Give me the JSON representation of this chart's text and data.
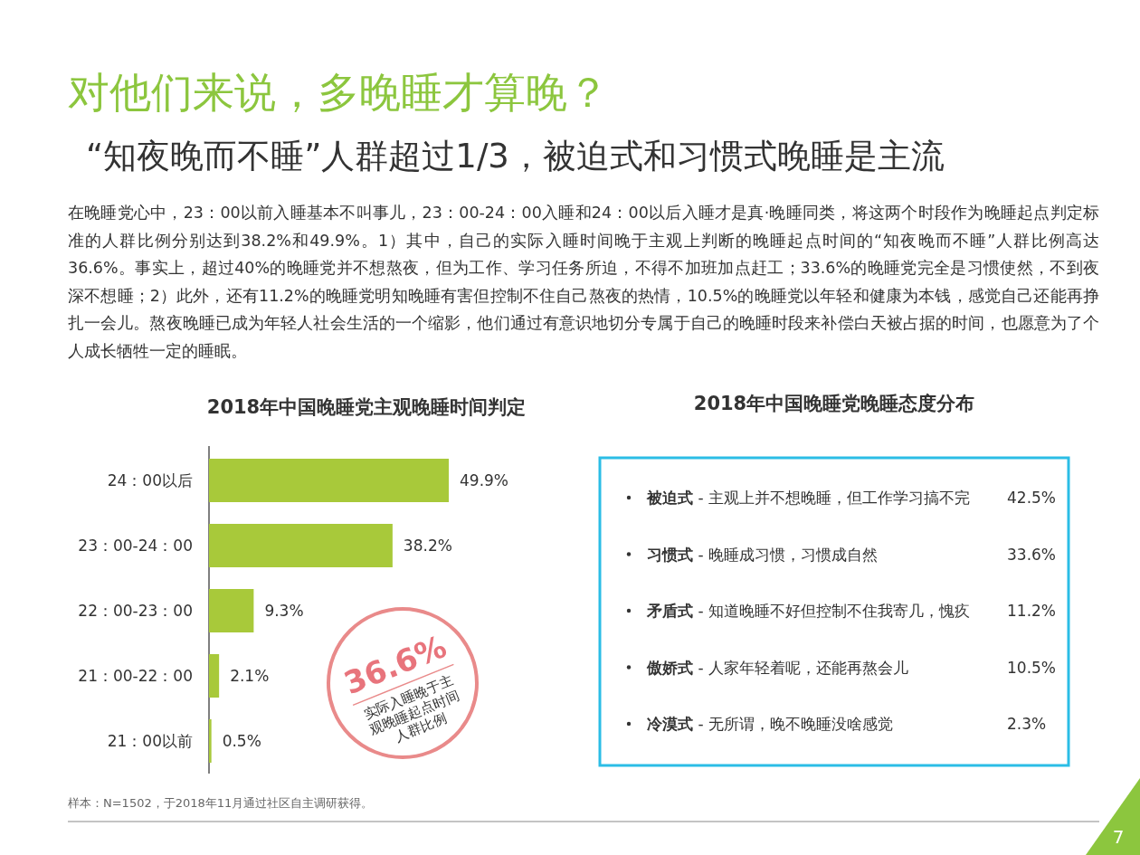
{
  "chart_data": [
    {
      "type": "bar",
      "orientation": "horizontal",
      "title": "2018年中国晚睡党主观晚睡时间判定",
      "categories": [
        "24：00以后",
        "23：00-24：00",
        "22：00-23：00",
        "21：00-22：00",
        "21：00以前"
      ],
      "values": [
        49.9,
        38.2,
        9.3,
        2.1,
        0.5
      ],
      "color": "#a8c93a",
      "value_labels": [
        "49.9%",
        "38.2%",
        "9.3%",
        "2.1%",
        "0.5%"
      ],
      "annotations": [
        "对他们来说，多晚睡才算晚？",
        "“知夜晚而不睡”人群超过1/3，被迫式和习惯式晚睡是主流",
        "在晚睡党心中，23：00以前入睡基本不叫事儿，23：00-24：00入睡和24：00以后入睡才是真·晚睡同类，将这两个时段作为晚睡起点判定标准的人群比例分别达到38.2%和49.9%。1）其中，自己的实际入睡时间晚于主观上判断的晚睡起点时间的“知夜晚而不睡”人群比例高达36.6%。事实上，超过40%的晚睡党并不想熬夜，但为工作、学习任务所迫，不得不加班加点赶工；33.6%的晚睡党完全是习惯使然，不到夜深不想睡；2）此外，还有11.2%的晚睡党明知晚睡有害但控制不住自己熬夜的热情，10.5%的晚睡党以年轻和健康为本钱，感觉自己还能再挣扎一会儿。熬夜晚睡已成为年轻人社会生活的一个缩影，他们通过有意识地切分专属于自己的晚睡时段来补偿白天被占据的时间，也愿意为了个人成长牺牲一定的睡眠。",
        "36.6%",
        "实际入睡晚于主观晚睡起点时间人群比例",
        "样本：N=1502，于2018年11月通过社区自主调研获得。",
        "7"
      ]
    },
    {
      "type": "other",
      "title": "2018年中国晚睡党晚睡态度分布",
      "color": "#2bbde6",
      "categories": [
        "**被迫式** - 主观上并不想晚睡，但工作学习搞不完",
        "**习惯式** - 晚睡成习惯，习惯成自然",
        "**矛盾式** - 知道晚睡不好但控制不住我寄几，愧疚",
        "**傲娇式** - 人家年轻着呢，还能再熬会儿",
        "**冷漠式** - 无所谓，晚不晚睡没啥感觉"
      ],
      "value_labels": [
        "42.5%",
        "33.6%",
        "11.2%",
        "10.5%",
        "2.3%"
      ]
    }
  ]
}
